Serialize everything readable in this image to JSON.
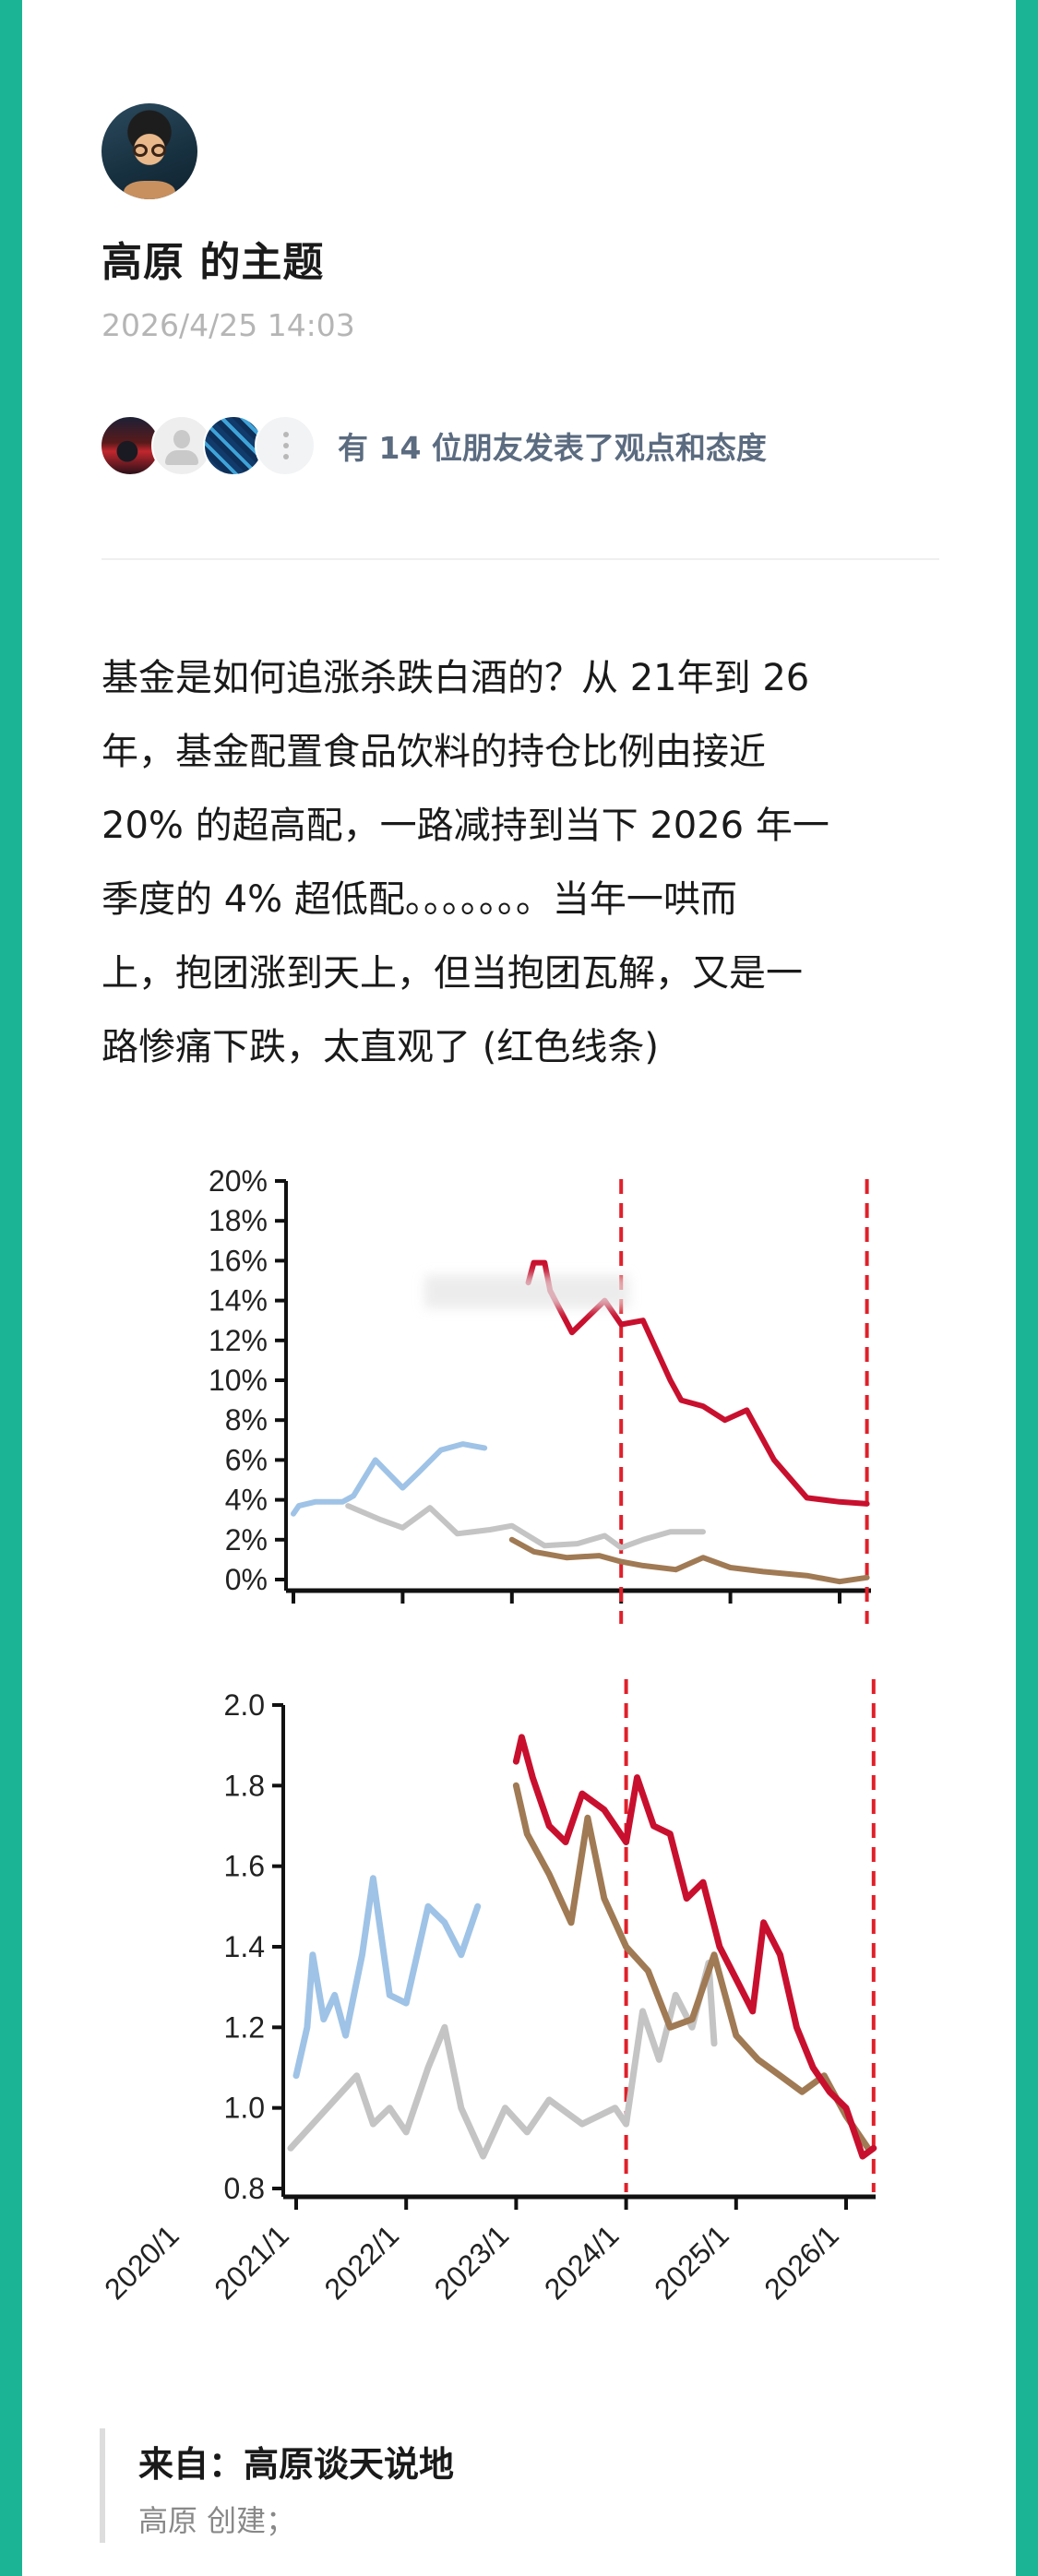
{
  "theme": {
    "border_color": "#1bb596",
    "card_bg": "#ffffff",
    "social_text_color": "#5b6b80"
  },
  "post": {
    "author": "高原",
    "title": "高原 的主题",
    "timestamp": "2026/4/25 14:03",
    "avatar_icon": "author-avatar"
  },
  "social": {
    "reactor_avatars": [
      "user-avatar-red-night",
      "user-avatar-default",
      "user-avatar-blue-film",
      "more-icon"
    ],
    "summary": "有 14 位朋友发表了观点和态度"
  },
  "body": {
    "lines": [
      "基金是如何追涨杀跌白酒的？从 21年到 26",
      "年，基金配置食品饮料的持仓比例由接近",
      " 20% 的超高配，一路减持到当下 2026 年一",
      "季度的 4% 超低配。。。。。。。当年一哄而",
      "上，抱团涨到天上，但当抱团瓦解，又是一",
      "路惨痛下跌，太直观了 (红色线条)"
    ]
  },
  "source": {
    "title": "来自：高原谈天说地",
    "subtitle": "高原 创建；"
  },
  "chart_data": [
    {
      "type": "line",
      "title": "",
      "xlabel": "",
      "ylabel": "",
      "y_ticks": [
        "20%",
        "18%",
        "16%",
        "14%",
        "12%",
        "10%",
        "8%",
        "6%",
        "4%",
        "2%",
        "0%"
      ],
      "ylim": [
        0,
        20
      ],
      "x_ticks": [
        "2021/1",
        "2022/1",
        "2023/1",
        "2024/1",
        "2025/1",
        "2026/1"
      ],
      "vlines_dashed_red": [
        "2024/1",
        "2026/4"
      ],
      "grid": false,
      "legend": "none",
      "note": "blurred/redacted rectangle covering area around 14-15% from ~2022/6 to 2024/1",
      "series": [
        {
          "name": "blue",
          "color": "#9fc3e6",
          "points": [
            [
              2021.0,
              3.3
            ],
            [
              2021.05,
              3.7
            ],
            [
              2021.2,
              3.9
            ],
            [
              2021.45,
              3.9
            ],
            [
              2021.55,
              4.2
            ],
            [
              2021.75,
              6.0
            ],
            [
              2022.0,
              4.6
            ],
            [
              2022.15,
              5.4
            ],
            [
              2022.35,
              6.5
            ],
            [
              2022.55,
              6.8
            ],
            [
              2022.75,
              6.6
            ]
          ]
        },
        {
          "name": "gray",
          "color": "#c4c4c4",
          "points": [
            [
              2021.5,
              3.7
            ],
            [
              2021.8,
              3.0
            ],
            [
              2022.0,
              2.6
            ],
            [
              2022.25,
              3.6
            ],
            [
              2022.5,
              2.3
            ],
            [
              2022.8,
              2.5
            ],
            [
              2023.0,
              2.7
            ],
            [
              2023.3,
              1.7
            ],
            [
              2023.6,
              1.8
            ],
            [
              2023.85,
              2.2
            ],
            [
              2024.0,
              1.6
            ],
            [
              2024.2,
              2.0
            ],
            [
              2024.45,
              2.4
            ],
            [
              2024.75,
              2.4
            ]
          ]
        },
        {
          "name": "brown",
          "color": "#a07a54",
          "points": [
            [
              2023.0,
              2.0
            ],
            [
              2023.2,
              1.4
            ],
            [
              2023.5,
              1.1
            ],
            [
              2023.8,
              1.2
            ],
            [
              2024.0,
              0.9
            ],
            [
              2024.2,
              0.7
            ],
            [
              2024.5,
              0.5
            ],
            [
              2024.75,
              1.1
            ],
            [
              2025.0,
              0.6
            ],
            [
              2025.3,
              0.4
            ],
            [
              2025.7,
              0.2
            ],
            [
              2026.0,
              -0.1
            ],
            [
              2026.25,
              0.1
            ]
          ]
        },
        {
          "name": "red",
          "color": "#c8102e",
          "points": [
            [
              2023.15,
              14.9
            ],
            [
              2023.2,
              15.9
            ],
            [
              2023.3,
              15.9
            ],
            [
              2023.35,
              14.5
            ],
            [
              2023.55,
              12.4
            ],
            [
              2023.85,
              14.0
            ],
            [
              2024.0,
              12.8
            ],
            [
              2024.2,
              13.0
            ],
            [
              2024.45,
              10.0
            ],
            [
              2024.55,
              9.0
            ],
            [
              2024.75,
              8.7
            ],
            [
              2024.95,
              8.0
            ],
            [
              2025.15,
              8.5
            ],
            [
              2025.4,
              6.0
            ],
            [
              2025.7,
              4.1
            ],
            [
              2026.0,
              3.9
            ],
            [
              2026.25,
              3.8
            ]
          ]
        }
      ]
    },
    {
      "type": "line",
      "title": "",
      "xlabel": "",
      "ylabel": "",
      "y_ticks": [
        "2.0",
        "1.8",
        "1.6",
        "1.4",
        "1.2",
        "1.0",
        "0.8"
      ],
      "ylim": [
        0.8,
        2.0
      ],
      "x_ticks": [
        "2020/1",
        "2021/1",
        "2022/1",
        "2023/1",
        "2024/1",
        "2025/1",
        "2026/1"
      ],
      "vlines_dashed_red": [
        "2024/1",
        "2026/4"
      ],
      "grid": false,
      "legend": "none",
      "series": [
        {
          "name": "blue",
          "color": "#9fc3e6",
          "points": [
            [
              2021.0,
              1.08
            ],
            [
              2021.1,
              1.2
            ],
            [
              2021.15,
              1.38
            ],
            [
              2021.25,
              1.22
            ],
            [
              2021.35,
              1.28
            ],
            [
              2021.45,
              1.18
            ],
            [
              2021.6,
              1.38
            ],
            [
              2021.7,
              1.57
            ],
            [
              2021.85,
              1.28
            ],
            [
              2022.0,
              1.26
            ],
            [
              2022.2,
              1.5
            ],
            [
              2022.35,
              1.46
            ],
            [
              2022.5,
              1.38
            ],
            [
              2022.65,
              1.5
            ]
          ]
        },
        {
          "name": "gray",
          "color": "#c4c4c4",
          "points": [
            [
              2020.95,
              0.9
            ],
            [
              2021.55,
              1.08
            ],
            [
              2021.7,
              0.96
            ],
            [
              2021.85,
              1.0
            ],
            [
              2022.0,
              0.94
            ],
            [
              2022.2,
              1.1
            ],
            [
              2022.35,
              1.2
            ],
            [
              2022.5,
              1.0
            ],
            [
              2022.7,
              0.88
            ],
            [
              2022.9,
              1.0
            ],
            [
              2023.1,
              0.94
            ],
            [
              2023.3,
              1.02
            ],
            [
              2023.6,
              0.96
            ],
            [
              2023.9,
              1.0
            ],
            [
              2024.0,
              0.96
            ],
            [
              2024.15,
              1.24
            ],
            [
              2024.3,
              1.12
            ],
            [
              2024.45,
              1.28
            ],
            [
              2024.6,
              1.2
            ],
            [
              2024.75,
              1.36
            ],
            [
              2024.8,
              1.16
            ]
          ]
        },
        {
          "name": "brown",
          "color": "#a07a54",
          "points": [
            [
              2023.0,
              1.8
            ],
            [
              2023.1,
              1.68
            ],
            [
              2023.3,
              1.58
            ],
            [
              2023.5,
              1.46
            ],
            [
              2023.65,
              1.72
            ],
            [
              2023.8,
              1.52
            ],
            [
              2024.0,
              1.4
            ],
            [
              2024.2,
              1.34
            ],
            [
              2024.4,
              1.2
            ],
            [
              2024.6,
              1.22
            ],
            [
              2024.8,
              1.38
            ],
            [
              2025.0,
              1.18
            ],
            [
              2025.2,
              1.12
            ],
            [
              2025.4,
              1.08
            ],
            [
              2025.6,
              1.04
            ],
            [
              2025.8,
              1.08
            ],
            [
              2026.0,
              0.98
            ],
            [
              2026.2,
              0.9
            ]
          ]
        },
        {
          "name": "red",
          "color": "#c8102e",
          "points": [
            [
              2023.0,
              1.86
            ],
            [
              2023.05,
              1.92
            ],
            [
              2023.15,
              1.82
            ],
            [
              2023.3,
              1.7
            ],
            [
              2023.45,
              1.66
            ],
            [
              2023.6,
              1.78
            ],
            [
              2023.8,
              1.74
            ],
            [
              2024.0,
              1.66
            ],
            [
              2024.1,
              1.82
            ],
            [
              2024.25,
              1.7
            ],
            [
              2024.4,
              1.68
            ],
            [
              2024.55,
              1.52
            ],
            [
              2024.7,
              1.56
            ],
            [
              2024.85,
              1.4
            ],
            [
              2025.0,
              1.32
            ],
            [
              2025.15,
              1.24
            ],
            [
              2025.25,
              1.46
            ],
            [
              2025.4,
              1.38
            ],
            [
              2025.55,
              1.2
            ],
            [
              2025.7,
              1.1
            ],
            [
              2025.85,
              1.04
            ],
            [
              2026.0,
              1.0
            ],
            [
              2026.15,
              0.88
            ],
            [
              2026.25,
              0.9
            ]
          ]
        }
      ]
    }
  ]
}
